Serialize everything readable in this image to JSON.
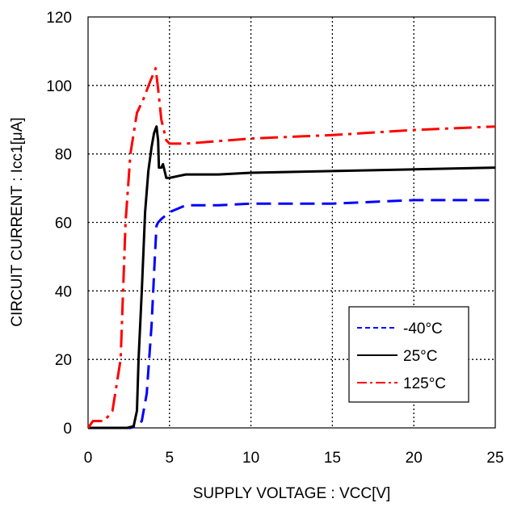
{
  "chart_data": {
    "type": "line",
    "xlabel": "SUPPLY VOLTAGE : VCC[V]",
    "ylabel": "CIRCUIT CURRENT : Icc1[μA]",
    "xlim": [
      0,
      25
    ],
    "ylim": [
      0,
      120
    ],
    "xticks": [
      "0",
      "5",
      "10",
      "15",
      "20",
      "25"
    ],
    "yticks": [
      "0",
      "20",
      "40",
      "60",
      "80",
      "100",
      "120"
    ],
    "grid": true,
    "legend_position": "bottom-right",
    "series": [
      {
        "name": "-40°C",
        "color": "#0000ff",
        "dash": "dashed",
        "x": [
          2.0,
          2.6,
          3.0,
          3.3,
          3.6,
          3.9,
          4.1,
          4.2,
          4.3,
          4.5,
          5.0,
          6.0,
          8.0,
          10.0,
          15.0,
          20.0,
          25.0
        ],
        "y": [
          0,
          0,
          0.5,
          2,
          10,
          30,
          50,
          59,
          60,
          61,
          63,
          65,
          65,
          65.5,
          65.5,
          66.5,
          66.5
        ]
      },
      {
        "name": "25°C",
        "color": "#000000",
        "dash": "solid",
        "x": [
          0.0,
          2.4,
          2.8,
          3.0,
          3.1,
          3.3,
          3.5,
          3.7,
          3.9,
          4.05,
          4.2,
          4.3,
          4.35,
          4.5,
          4.6,
          4.7,
          4.8,
          5.0,
          5.5,
          6.0,
          8.0,
          10.0,
          15.0,
          20.0,
          25.0
        ],
        "y": [
          0,
          0,
          0.5,
          5,
          20,
          40,
          63,
          75,
          82,
          86,
          88,
          84,
          76,
          76,
          77,
          75,
          73,
          73,
          73.5,
          74,
          74,
          74.5,
          75,
          75.5,
          76
        ]
      },
      {
        "name": "125°C",
        "color": "#ff0000",
        "dash": "dashdot",
        "x": [
          0.0,
          0.3,
          1.0,
          1.5,
          2.0,
          2.3,
          2.6,
          3.0,
          3.4,
          3.8,
          4.15,
          4.3,
          4.5,
          4.8,
          5.0,
          6.0,
          10.0,
          15.0,
          20.0,
          25.0
        ],
        "y": [
          0,
          2,
          2,
          5,
          20,
          60,
          80,
          92,
          96,
          101,
          105,
          99,
          90,
          84,
          83,
          83,
          84.5,
          85.5,
          87,
          88
        ]
      }
    ]
  }
}
